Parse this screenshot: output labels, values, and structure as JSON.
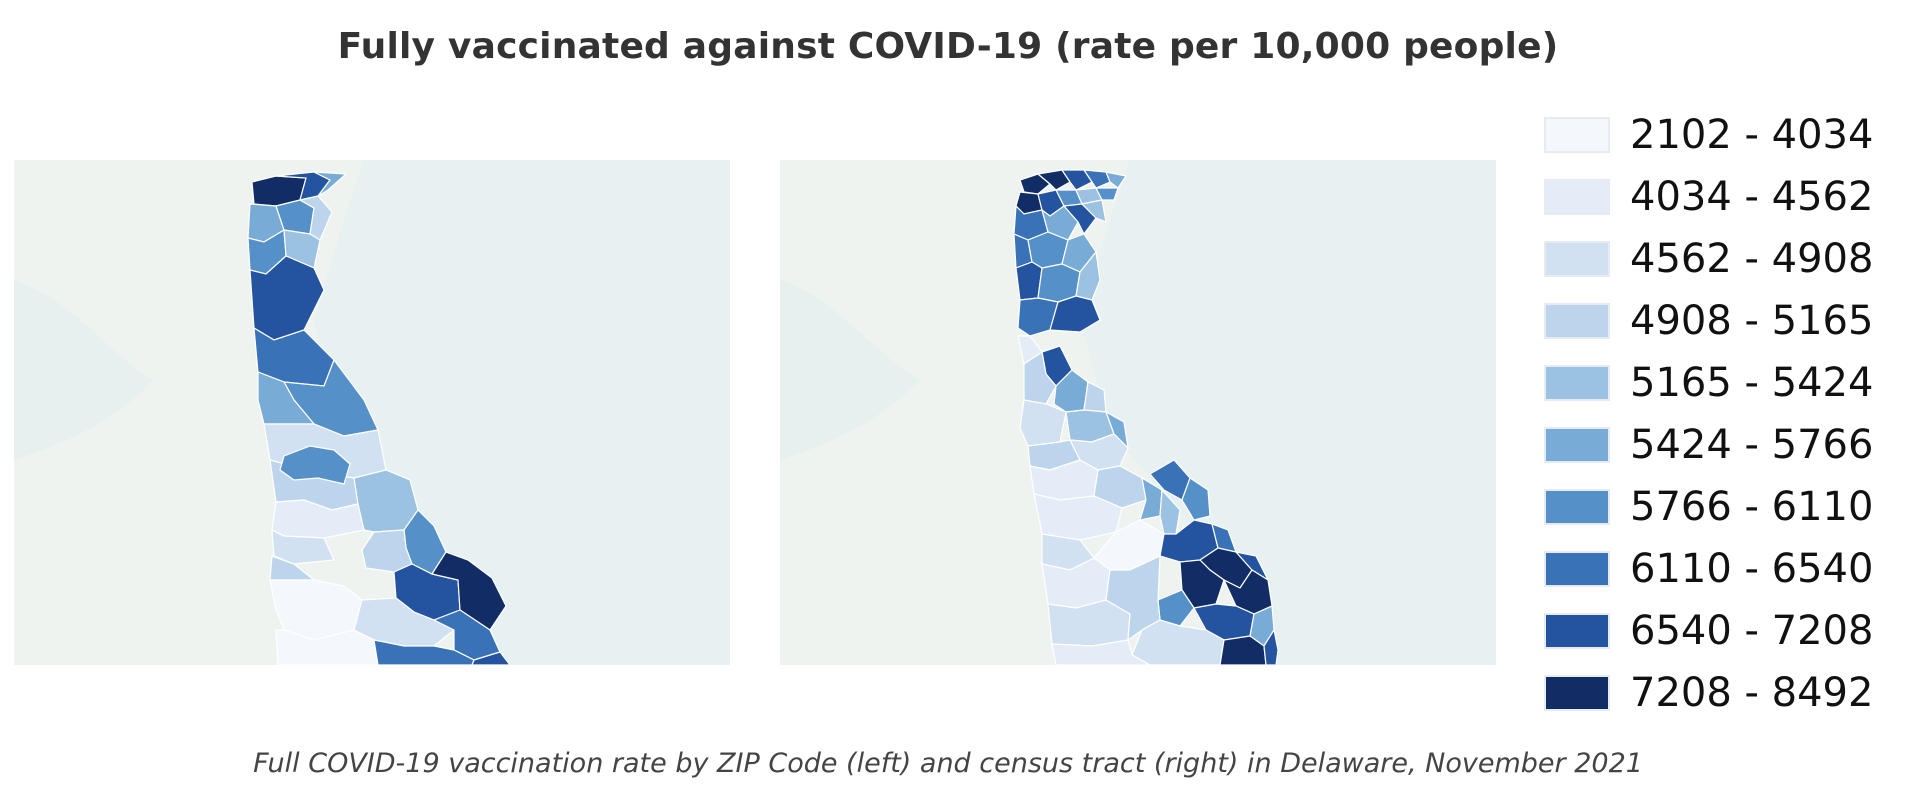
{
  "title": "Fully vaccinated against COVID-19 (rate per 10,000 people)",
  "caption": "Full COVID-19 vaccination rate by ZIP Code (left) and census tract (right) in Delaware, November 2021",
  "colors": {
    "background_land": "#eef3f0",
    "water": "#e7f1f2",
    "region_stroke": "#ffffff"
  },
  "legend": {
    "items": [
      {
        "label": "2102 - 4034",
        "color": "#f4f8fc"
      },
      {
        "label": "4034 - 4562",
        "color": "#e3ecf7"
      },
      {
        "label": "4562 - 4908",
        "color": "#d2e1f1"
      },
      {
        "label": "4908 - 5165",
        "color": "#bcd5ec"
      },
      {
        "label": "5165 - 5424",
        "color": "#9cc2e2"
      },
      {
        "label": "5424 - 5766",
        "color": "#78acd6"
      },
      {
        "label": "5766 - 6110",
        "color": "#5591c8"
      },
      {
        "label": "6110 - 6540",
        "color": "#3a72b8"
      },
      {
        "label": "6540 - 7208",
        "color": "#2453a0"
      },
      {
        "label": "7208 - 8492",
        "color": "#122d66"
      }
    ]
  },
  "maps": [
    {
      "geography": "ZIP Code",
      "position": "left"
    },
    {
      "geography": "census tract",
      "position": "right"
    }
  ]
}
